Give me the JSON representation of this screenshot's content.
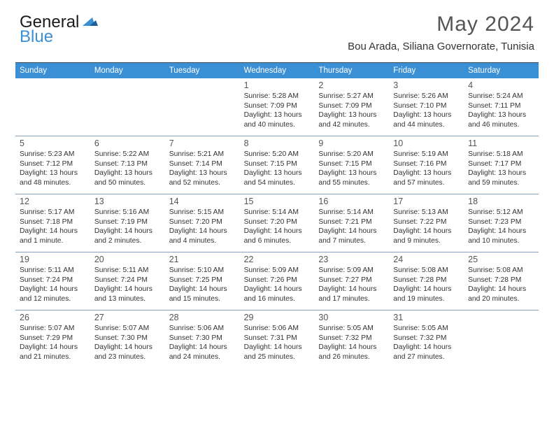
{
  "brand": {
    "name_a": "General",
    "name_b": "Blue",
    "accent": "#3b8fd4"
  },
  "title": "May 2024",
  "location": "Bou Arada, Siliana Governorate, Tunisia",
  "colors": {
    "header_bg": "#3b8fd4",
    "header_text": "#ffffff",
    "rule": "#88a0b8",
    "top_rule": "#4a4a4a",
    "day_num": "#555555",
    "body_text": "#333333"
  },
  "weekdays": [
    "Sunday",
    "Monday",
    "Tuesday",
    "Wednesday",
    "Thursday",
    "Friday",
    "Saturday"
  ],
  "weeks": [
    [
      null,
      null,
      null,
      {
        "n": "1",
        "sr": "5:28 AM",
        "ss": "7:09 PM",
        "dl": "13 hours and 40 minutes."
      },
      {
        "n": "2",
        "sr": "5:27 AM",
        "ss": "7:09 PM",
        "dl": "13 hours and 42 minutes."
      },
      {
        "n": "3",
        "sr": "5:26 AM",
        "ss": "7:10 PM",
        "dl": "13 hours and 44 minutes."
      },
      {
        "n": "4",
        "sr": "5:24 AM",
        "ss": "7:11 PM",
        "dl": "13 hours and 46 minutes."
      }
    ],
    [
      {
        "n": "5",
        "sr": "5:23 AM",
        "ss": "7:12 PM",
        "dl": "13 hours and 48 minutes."
      },
      {
        "n": "6",
        "sr": "5:22 AM",
        "ss": "7:13 PM",
        "dl": "13 hours and 50 minutes."
      },
      {
        "n": "7",
        "sr": "5:21 AM",
        "ss": "7:14 PM",
        "dl": "13 hours and 52 minutes."
      },
      {
        "n": "8",
        "sr": "5:20 AM",
        "ss": "7:15 PM",
        "dl": "13 hours and 54 minutes."
      },
      {
        "n": "9",
        "sr": "5:20 AM",
        "ss": "7:15 PM",
        "dl": "13 hours and 55 minutes."
      },
      {
        "n": "10",
        "sr": "5:19 AM",
        "ss": "7:16 PM",
        "dl": "13 hours and 57 minutes."
      },
      {
        "n": "11",
        "sr": "5:18 AM",
        "ss": "7:17 PM",
        "dl": "13 hours and 59 minutes."
      }
    ],
    [
      {
        "n": "12",
        "sr": "5:17 AM",
        "ss": "7:18 PM",
        "dl": "14 hours and 1 minute."
      },
      {
        "n": "13",
        "sr": "5:16 AM",
        "ss": "7:19 PM",
        "dl": "14 hours and 2 minutes."
      },
      {
        "n": "14",
        "sr": "5:15 AM",
        "ss": "7:20 PM",
        "dl": "14 hours and 4 minutes."
      },
      {
        "n": "15",
        "sr": "5:14 AM",
        "ss": "7:20 PM",
        "dl": "14 hours and 6 minutes."
      },
      {
        "n": "16",
        "sr": "5:14 AM",
        "ss": "7:21 PM",
        "dl": "14 hours and 7 minutes."
      },
      {
        "n": "17",
        "sr": "5:13 AM",
        "ss": "7:22 PM",
        "dl": "14 hours and 9 minutes."
      },
      {
        "n": "18",
        "sr": "5:12 AM",
        "ss": "7:23 PM",
        "dl": "14 hours and 10 minutes."
      }
    ],
    [
      {
        "n": "19",
        "sr": "5:11 AM",
        "ss": "7:24 PM",
        "dl": "14 hours and 12 minutes."
      },
      {
        "n": "20",
        "sr": "5:11 AM",
        "ss": "7:24 PM",
        "dl": "14 hours and 13 minutes."
      },
      {
        "n": "21",
        "sr": "5:10 AM",
        "ss": "7:25 PM",
        "dl": "14 hours and 15 minutes."
      },
      {
        "n": "22",
        "sr": "5:09 AM",
        "ss": "7:26 PM",
        "dl": "14 hours and 16 minutes."
      },
      {
        "n": "23",
        "sr": "5:09 AM",
        "ss": "7:27 PM",
        "dl": "14 hours and 17 minutes."
      },
      {
        "n": "24",
        "sr": "5:08 AM",
        "ss": "7:28 PM",
        "dl": "14 hours and 19 minutes."
      },
      {
        "n": "25",
        "sr": "5:08 AM",
        "ss": "7:28 PM",
        "dl": "14 hours and 20 minutes."
      }
    ],
    [
      {
        "n": "26",
        "sr": "5:07 AM",
        "ss": "7:29 PM",
        "dl": "14 hours and 21 minutes."
      },
      {
        "n": "27",
        "sr": "5:07 AM",
        "ss": "7:30 PM",
        "dl": "14 hours and 23 minutes."
      },
      {
        "n": "28",
        "sr": "5:06 AM",
        "ss": "7:30 PM",
        "dl": "14 hours and 24 minutes."
      },
      {
        "n": "29",
        "sr": "5:06 AM",
        "ss": "7:31 PM",
        "dl": "14 hours and 25 minutes."
      },
      {
        "n": "30",
        "sr": "5:05 AM",
        "ss": "7:32 PM",
        "dl": "14 hours and 26 minutes."
      },
      {
        "n": "31",
        "sr": "5:05 AM",
        "ss": "7:32 PM",
        "dl": "14 hours and 27 minutes."
      },
      null
    ]
  ],
  "labels": {
    "sunrise": "Sunrise:",
    "sunset": "Sunset:",
    "daylight": "Daylight:"
  }
}
